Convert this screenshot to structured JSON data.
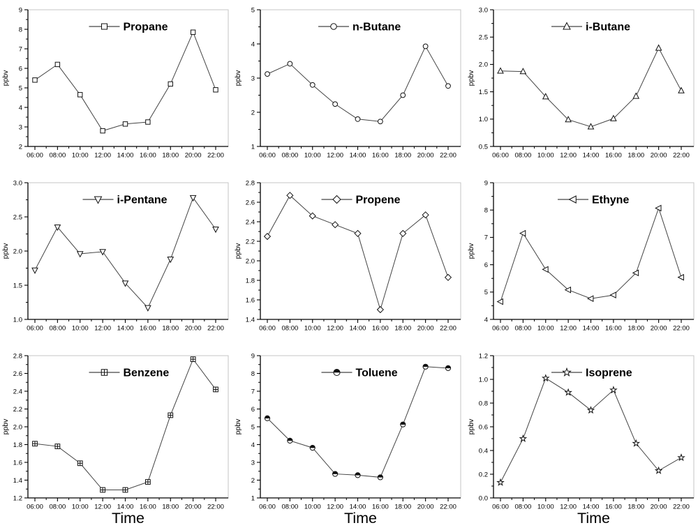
{
  "figure": {
    "xlabel": "Time",
    "ylabel": "ppbv",
    "x_categories": [
      "06:00",
      "08:00",
      "10:00",
      "12:00",
      "14:00",
      "16:00",
      "18:00",
      "20:00",
      "22:00"
    ],
    "colors": {
      "line": "#444444",
      "marker_stroke": "#111111",
      "marker_fill": "#ffffff",
      "axis": "#000000",
      "box_frame": "#c4c4c4",
      "background": "#ffffff"
    }
  },
  "chart_data": [
    {
      "type": "line",
      "title": "Propane",
      "marker": "square-open",
      "ylabel": "ppbv",
      "yticks": [
        "2",
        "3",
        "4",
        "5",
        "6",
        "7",
        "8",
        "9"
      ],
      "ylim": [
        2,
        9
      ],
      "values": [
        5.4,
        6.2,
        4.65,
        2.8,
        3.15,
        3.25,
        5.2,
        7.85,
        4.9
      ],
      "legend_position": "top-center",
      "grid": false
    },
    {
      "type": "line",
      "title": "n-Butane",
      "marker": "circle-open",
      "ylabel": "ppbv",
      "yticks": [
        "1",
        "2",
        "3",
        "4",
        "5"
      ],
      "ylim": [
        1,
        5
      ],
      "values": [
        3.12,
        3.42,
        2.8,
        2.24,
        1.8,
        1.73,
        2.5,
        3.93,
        2.77
      ],
      "legend_position": "top-center",
      "grid": false
    },
    {
      "type": "line",
      "title": "i-Butane",
      "marker": "triangle-up-open",
      "ylabel": "ppbv",
      "yticks": [
        "0.5",
        "1.0",
        "1.5",
        "2.0",
        "2.5",
        "3.0"
      ],
      "ylim": [
        0.5,
        3.0
      ],
      "values": [
        1.88,
        1.87,
        1.41,
        0.99,
        0.86,
        1.01,
        1.42,
        2.3,
        1.52
      ],
      "legend_position": "top-center",
      "grid": false
    },
    {
      "type": "line",
      "title": "i-Pentane",
      "marker": "triangle-down-open",
      "ylabel": "ppbv",
      "yticks": [
        "1.0",
        "1.5",
        "2.0",
        "2.5",
        "3.0"
      ],
      "ylim": [
        1.0,
        3.0
      ],
      "values": [
        1.72,
        2.35,
        1.96,
        1.99,
        1.53,
        1.17,
        1.88,
        2.78,
        2.32
      ],
      "legend_position": "top-center",
      "grid": false
    },
    {
      "type": "line",
      "title": "Propene",
      "marker": "diamond-open",
      "ylabel": "ppbv",
      "yticks": [
        "1.4",
        "1.6",
        "1.8",
        "2.0",
        "2.2",
        "2.4",
        "2.6",
        "2.8"
      ],
      "ylim": [
        1.4,
        2.8
      ],
      "values": [
        2.25,
        2.67,
        2.46,
        2.37,
        2.28,
        1.5,
        2.28,
        2.47,
        1.83
      ],
      "legend_position": "top-center",
      "grid": false
    },
    {
      "type": "line",
      "title": "Ethyne",
      "marker": "triangle-left-open",
      "ylabel": "ppbv",
      "yticks": [
        "4",
        "5",
        "6",
        "7",
        "8",
        "9"
      ],
      "ylim": [
        4,
        9
      ],
      "values": [
        4.65,
        7.15,
        5.83,
        5.08,
        4.76,
        4.89,
        5.7,
        8.07,
        5.54
      ],
      "legend_position": "top-center",
      "grid": false
    },
    {
      "type": "line",
      "title": "Benzene",
      "marker": "square-cross",
      "ylabel": "ppbv",
      "yticks": [
        "1.2",
        "1.4",
        "1.6",
        "1.8",
        "2.0",
        "2.2",
        "2.4",
        "2.6",
        "2.8"
      ],
      "ylim": [
        1.2,
        2.8
      ],
      "values": [
        1.81,
        1.78,
        1.59,
        1.29,
        1.29,
        1.38,
        2.13,
        2.76,
        2.42
      ],
      "legend_position": "top-center",
      "grid": false
    },
    {
      "type": "line",
      "title": "Toluene",
      "marker": "circle-half",
      "ylabel": "ppbv",
      "yticks": [
        "1",
        "2",
        "3",
        "4",
        "5",
        "6",
        "7",
        "8",
        "9"
      ],
      "ylim": [
        1,
        9
      ],
      "values": [
        5.48,
        4.22,
        3.82,
        2.35,
        2.28,
        2.16,
        5.13,
        8.38,
        8.3
      ],
      "legend_position": "top-center",
      "grid": false
    },
    {
      "type": "line",
      "title": "Isoprene",
      "marker": "star-open",
      "ylabel": "ppbv",
      "yticks": [
        "0.0",
        "0.2",
        "0.4",
        "0.6",
        "0.8",
        "1.0",
        "1.2"
      ],
      "ylim": [
        0.0,
        1.2
      ],
      "values": [
        0.13,
        0.5,
        1.01,
        0.89,
        0.74,
        0.91,
        0.46,
        0.23,
        0.34
      ],
      "legend_position": "top-center",
      "grid": false
    }
  ]
}
